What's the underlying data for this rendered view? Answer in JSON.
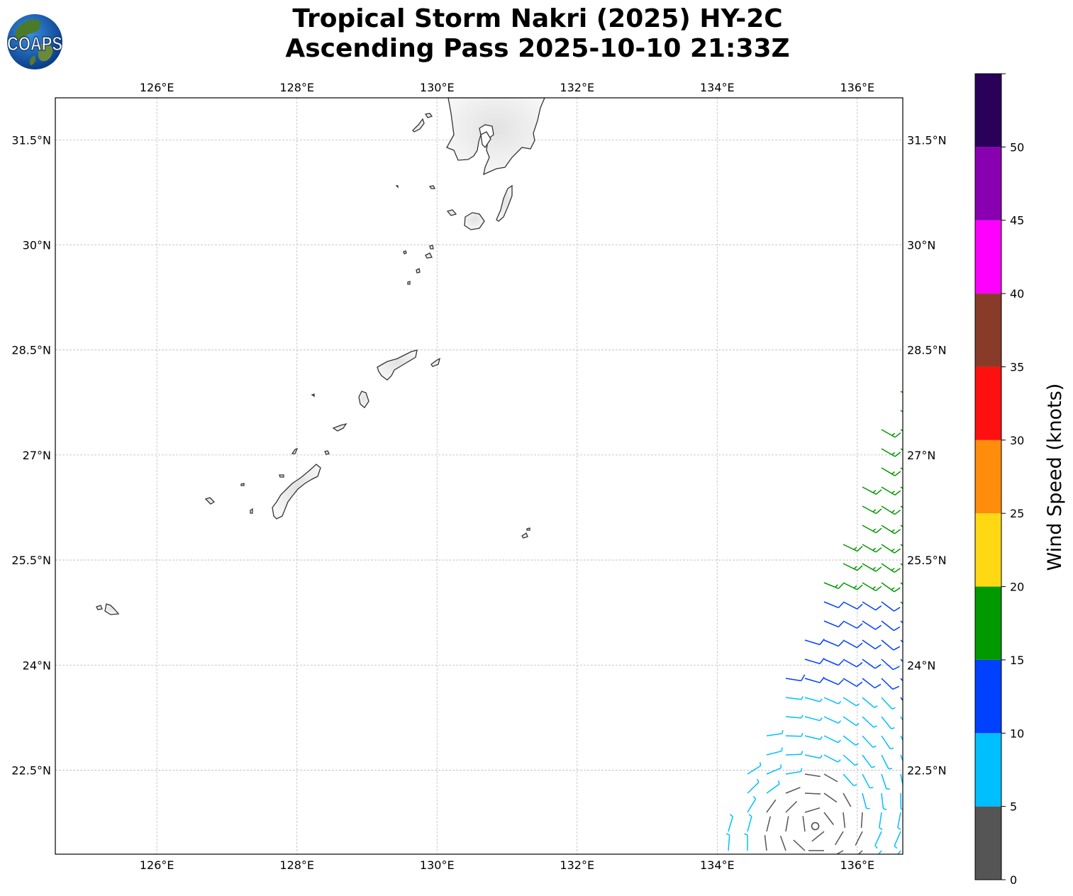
{
  "title": {
    "line1": "Tropical Storm Nakri (2025) HY-2C",
    "line2": "Ascending Pass 2025-10-10 21:33Z"
  },
  "logo": {
    "text": "COAPS",
    "ocean_color": "#1f6fbf",
    "land_color": "#4a7a2a"
  },
  "map": {
    "lon_range": [
      124.55,
      136.65
    ],
    "lat_range": [
      21.3,
      32.1
    ],
    "x_ticks": [
      {
        "value": 126,
        "label": "126°E"
      },
      {
        "value": 128,
        "label": "128°E"
      },
      {
        "value": 130,
        "label": "130°E"
      },
      {
        "value": 132,
        "label": "132°E"
      },
      {
        "value": 134,
        "label": "134°E"
      },
      {
        "value": 136,
        "label": "136°E"
      }
    ],
    "y_ticks": [
      {
        "value": 31.5,
        "label": "31.5°N"
      },
      {
        "value": 30,
        "label": "30°N"
      },
      {
        "value": 28.5,
        "label": "28.5°N"
      },
      {
        "value": 27,
        "label": "27°N"
      },
      {
        "value": 25.5,
        "label": "25.5°N"
      },
      {
        "value": 24,
        "label": "24°N"
      },
      {
        "value": 22.5,
        "label": "22.5°N"
      }
    ],
    "grid": true,
    "coastline_color": "#333333",
    "storm_center": {
      "lon": 135.4,
      "lat": 21.7
    }
  },
  "colorbar": {
    "label": "Wind Speed (knots)",
    "ticks": [
      "0",
      "5",
      "10",
      "15",
      "20",
      "25",
      "30",
      "35",
      "40",
      "45",
      "50"
    ],
    "bins": [
      {
        "from": 0,
        "to": 5,
        "color": "#555555"
      },
      {
        "from": 5,
        "to": 10,
        "color": "#00bfff"
      },
      {
        "from": 10,
        "to": 15,
        "color": "#0040ff"
      },
      {
        "from": 15,
        "to": 20,
        "color": "#009900"
      },
      {
        "from": 20,
        "to": 25,
        "color": "#ffd814"
      },
      {
        "from": 25,
        "to": 30,
        "color": "#ff8c0a"
      },
      {
        "from": 30,
        "to": 35,
        "color": "#ff1010"
      },
      {
        "from": 35,
        "to": 40,
        "color": "#883b28"
      },
      {
        "from": 40,
        "to": 45,
        "color": "#ff00ff"
      },
      {
        "from": 45,
        "to": 50,
        "color": "#8800b0"
      },
      {
        "from": 50,
        "to": 55,
        "color": "#2a005a"
      }
    ]
  }
}
